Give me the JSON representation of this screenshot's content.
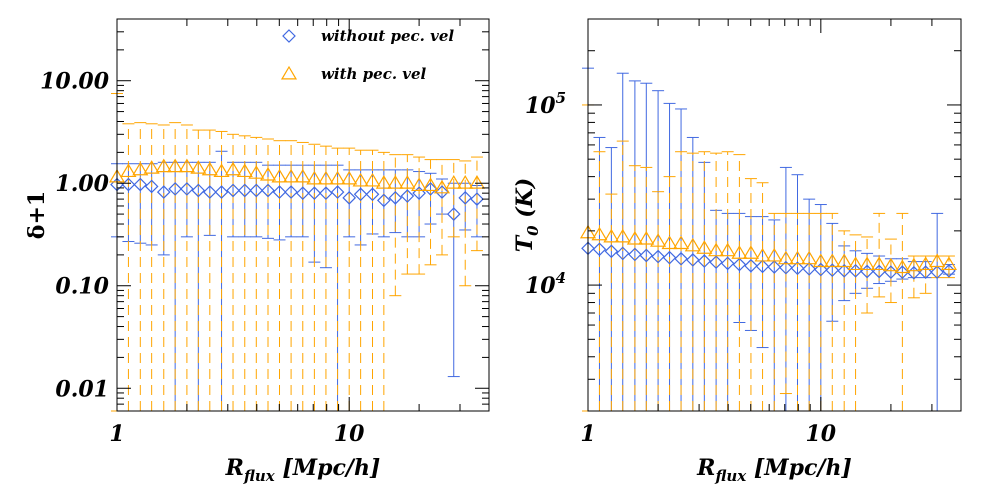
{
  "colors": {
    "without": "#4169e1",
    "with": "#ffa500"
  },
  "chart_data": [
    {
      "type": "scatter",
      "xscale": "log",
      "yscale": "log",
      "xlim": [
        1,
        40
      ],
      "ylim": [
        0.006,
        40
      ],
      "xlabel": "R",
      "xlabel_sub": "flux",
      "xlabel_rest": " [Mpc/h]",
      "ylabel": "δ+1",
      "xtick_labels": [
        "1",
        "10"
      ],
      "ytick_labels": [
        "0.01",
        "0.10",
        "1.00",
        "10.00"
      ],
      "legend": {
        "position": "top-right",
        "entries": [
          "without pec. vel",
          "with pec. vel"
        ]
      },
      "series": [
        {
          "name": "without pec. vel",
          "marker": "diamond",
          "x": [
            1.0,
            1.12,
            1.26,
            1.41,
            1.59,
            1.78,
            2.0,
            2.24,
            2.51,
            2.82,
            3.16,
            3.55,
            3.98,
            4.47,
            5.01,
            5.62,
            6.31,
            7.08,
            7.94,
            8.91,
            10.0,
            11.2,
            12.6,
            14.1,
            15.8,
            17.8,
            20.0,
            22.4,
            25.1,
            28.2,
            31.6,
            35.5
          ],
          "y": [
            0.97,
            0.97,
            0.97,
            0.93,
            0.82,
            0.88,
            0.88,
            0.85,
            0.82,
            0.82,
            0.85,
            0.85,
            0.85,
            0.85,
            0.82,
            0.82,
            0.8,
            0.8,
            0.8,
            0.82,
            0.72,
            0.78,
            0.78,
            0.68,
            0.72,
            0.75,
            0.8,
            0.88,
            0.82,
            0.5,
            0.72,
            0.7
          ],
          "y_low": [
            0.3,
            0.27,
            0.26,
            0.25,
            0.2,
            0.006,
            0.3,
            0.006,
            0.31,
            0.006,
            0.3,
            0.3,
            0.3,
            0.29,
            0.28,
            0.3,
            0.3,
            0.17,
            0.15,
            0.006,
            0.3,
            0.25,
            0.32,
            0.3,
            0.33,
            0.3,
            0.3,
            0.4,
            0.5,
            0.013,
            0.35,
            0.3
          ],
          "y_high": [
            1.55,
            1.55,
            1.55,
            1.55,
            1.6,
            1.6,
            1.6,
            1.6,
            1.6,
            2.05,
            1.6,
            1.6,
            1.6,
            1.5,
            1.5,
            1.5,
            1.5,
            1.5,
            1.5,
            1.5,
            1.35,
            1.35,
            1.35,
            1.35,
            1.35,
            1.35,
            1.3,
            1.25,
            1.1,
            1.0,
            1.0,
            0.95
          ]
        },
        {
          "name": "with pec. vel",
          "marker": "triangle",
          "x": [
            1.0,
            1.12,
            1.26,
            1.41,
            1.59,
            1.78,
            2.0,
            2.24,
            2.51,
            2.82,
            3.16,
            3.55,
            3.98,
            4.47,
            5.01,
            5.62,
            6.31,
            7.08,
            7.94,
            8.91,
            10.0,
            11.2,
            12.6,
            14.1,
            15.8,
            17.8,
            20.0,
            22.4,
            25.1,
            28.2,
            31.6,
            35.5
          ],
          "y": [
            1.15,
            1.3,
            1.35,
            1.4,
            1.45,
            1.45,
            1.45,
            1.4,
            1.35,
            1.3,
            1.35,
            1.3,
            1.25,
            1.2,
            1.15,
            1.15,
            1.15,
            1.1,
            1.1,
            1.1,
            1.1,
            1.05,
            1.05,
            1.0,
            1.0,
            1.0,
            0.95,
            0.95,
            0.9,
            1.0,
            1.0,
            1.0
          ],
          "y_low": [
            0.006,
            0.006,
            0.006,
            0.006,
            0.006,
            0.006,
            0.006,
            0.006,
            0.006,
            0.006,
            0.006,
            0.006,
            0.006,
            0.006,
            0.006,
            0.006,
            0.006,
            0.006,
            0.006,
            0.006,
            0.006,
            0.006,
            0.006,
            0.006,
            0.08,
            0.13,
            0.13,
            0.16,
            0.2,
            0.3,
            0.1,
            0.22
          ],
          "y_high": [
            7.5,
            3.8,
            3.9,
            3.8,
            3.7,
            3.9,
            3.7,
            3.3,
            3.3,
            3.2,
            3.0,
            2.9,
            2.8,
            2.7,
            2.6,
            2.6,
            2.5,
            2.4,
            2.3,
            2.2,
            2.2,
            2.1,
            2.1,
            2.0,
            1.9,
            1.9,
            1.8,
            1.7,
            1.7,
            1.7,
            1.65,
            1.8
          ]
        }
      ]
    },
    {
      "type": "scatter",
      "xscale": "log",
      "yscale": "log",
      "xlim": [
        1,
        40
      ],
      "ylim": [
        2000,
        300000
      ],
      "xlabel": "R",
      "xlabel_sub": "flux",
      "xlabel_rest": " [Mpc/h]",
      "ylabel": "T",
      "ylabel_sub": "0",
      "ylabel_rest": " (K)",
      "xtick_labels": [
        "1",
        "10"
      ],
      "ytick_labels": [
        {
          "base": "10",
          "exp": "4"
        },
        {
          "base": "10",
          "exp": "5"
        }
      ],
      "series": [
        {
          "name": "without pec. vel",
          "marker": "diamond",
          "x": [
            1.0,
            1.12,
            1.26,
            1.41,
            1.59,
            1.78,
            2.0,
            2.24,
            2.51,
            2.82,
            3.16,
            3.55,
            3.98,
            4.47,
            5.01,
            5.62,
            6.31,
            7.08,
            7.94,
            8.91,
            10.0,
            11.2,
            12.6,
            14.1,
            15.8,
            17.8,
            20.0,
            22.4,
            25.1,
            28.2,
            31.6,
            35.5
          ],
          "y": [
            16000,
            15800,
            15400,
            15000,
            14800,
            14600,
            14400,
            14200,
            14000,
            13800,
            13600,
            13400,
            13200,
            13000,
            12800,
            12700,
            12600,
            12500,
            12400,
            12300,
            12200,
            12100,
            12000,
            12000,
            11900,
            11900,
            11800,
            11800,
            11700,
            11800,
            11800,
            12000
          ],
          "y_low": [
            2000,
            2000,
            2000,
            2000,
            2000,
            2000,
            2000,
            2000,
            2000,
            2000,
            2000,
            2000,
            2000,
            6200,
            5600,
            4500,
            2000,
            2000,
            2000,
            2000,
            2000,
            6300,
            8200,
            9000,
            9600,
            10200,
            10500,
            10800,
            11000,
            11000,
            2000,
            11500
          ],
          "y_high": [
            160000,
            66000,
            58000,
            150000,
            136000,
            132000,
            120000,
            102000,
            95000,
            66000,
            48000,
            26000,
            25000,
            25000,
            24000,
            24000,
            23000,
            45000,
            41000,
            30000,
            28000,
            22000,
            16500,
            15500,
            15000,
            14500,
            14000,
            14000,
            13500,
            13500,
            25000,
            13000
          ]
        },
        {
          "name": "with pec. vel",
          "marker": "triangle",
          "x": [
            1.0,
            1.12,
            1.26,
            1.41,
            1.59,
            1.78,
            2.0,
            2.24,
            2.51,
            2.82,
            3.16,
            3.55,
            3.98,
            4.47,
            5.01,
            5.62,
            6.31,
            7.08,
            7.94,
            8.91,
            10.0,
            11.2,
            12.6,
            14.1,
            15.8,
            17.8,
            20.0,
            22.4,
            25.1,
            28.2,
            31.6,
            35.5
          ],
          "y": [
            19500,
            19000,
            18500,
            18500,
            18000,
            18000,
            17500,
            17000,
            17000,
            16500,
            16000,
            15500,
            15500,
            15000,
            15000,
            14500,
            14500,
            14000,
            14000,
            14000,
            13500,
            13500,
            13500,
            13000,
            13000,
            13000,
            12800,
            12500,
            12800,
            13000,
            13500,
            13000
          ],
          "y_low": [
            2000,
            2000,
            2000,
            2000,
            2000,
            2000,
            2000,
            2000,
            2000,
            2000,
            2000,
            2000,
            2000,
            2000,
            2000,
            2000,
            2000,
            2500,
            2000,
            2000,
            2000,
            2000,
            2000,
            2000,
            7000,
            8600,
            8000,
            2000,
            8500,
            9000,
            11000,
            11000
          ],
          "y_high": [
            100000,
            55000,
            32000,
            63000,
            46000,
            45000,
            33000,
            40000,
            55000,
            54000,
            55000,
            54000,
            55000,
            53000,
            39000,
            37000,
            25000,
            25000,
            25000,
            25000,
            25000,
            25000,
            20000,
            19000,
            18500,
            25000,
            18000,
            25000,
            14500,
            14500,
            14500,
            14500
          ]
        }
      ]
    }
  ]
}
